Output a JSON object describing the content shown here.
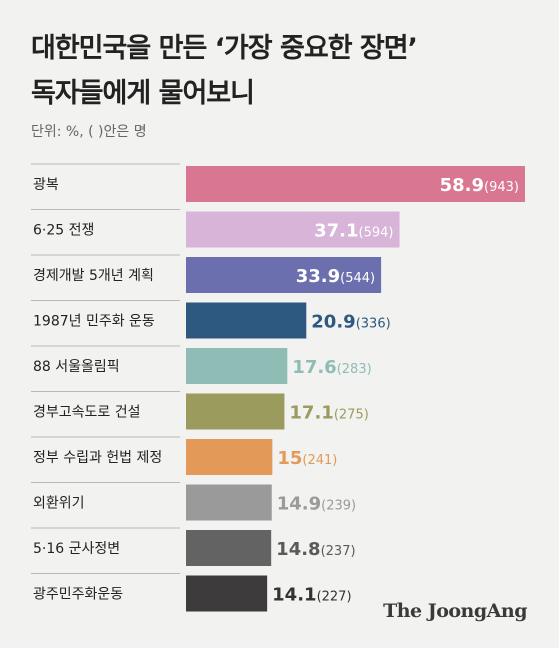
{
  "title_line1": "대한민국을 만든 ‘가장 중요한 장면’",
  "title_line2": "독자들에게 물어보니",
  "unit": "단위: %, ( )안은 명",
  "brand": "The JoongAng",
  "chart_data": {
    "type": "bar",
    "orientation": "horizontal",
    "categories": [
      "광복",
      "6·25 전쟁",
      "경제개발 5개년 계획",
      "1987년 민주화 운동",
      "88 서울올림픽",
      "경부고속도로 건설",
      "정부 수립과 헌법 제정",
      "외환위기",
      "5·16 군사정변",
      "광주민주화운동"
    ],
    "values": [
      58.9,
      37.1,
      33.9,
      20.9,
      17.6,
      17.1,
      15,
      14.9,
      14.8,
      14.1
    ],
    "value_labels": [
      "58.9",
      "37.1",
      "33.9",
      "20.9",
      "17.6",
      "17.1",
      "15",
      "14.9",
      "14.8",
      "14.1"
    ],
    "counts": [
      "(943)",
      "(594)",
      "(544)",
      "(336)",
      "(283)",
      "(275)",
      "(241)",
      "(239)",
      "(237)",
      "(227)"
    ],
    "colors": [
      "#d97792",
      "#d8b4d8",
      "#6c6fae",
      "#2d5880",
      "#8fbcb4",
      "#9b9b5e",
      "#e39a59",
      "#9a9a9a",
      "#636363",
      "#3d3b3b"
    ],
    "label_colors": [
      "#ffffff",
      "#ffffff",
      "#ffffff",
      "#2d5880",
      "#8fbcb4",
      "#9b9b5e",
      "#e39a59",
      "#9a9a9a",
      "#5a5a5a",
      "#333333"
    ],
    "xlim": [
      0,
      58.9
    ],
    "grid": false,
    "legend": "none"
  }
}
